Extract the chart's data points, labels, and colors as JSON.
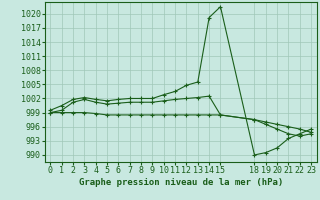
{
  "title": "Graphe pression niveau de la mer (hPa)",
  "background_color": "#c8e8e0",
  "grid_color": "#a0c8b8",
  "line_color": "#1a5e1a",
  "marker": "+",
  "line1_x": [
    0,
    1,
    2,
    3,
    4,
    5,
    6,
    7,
    8,
    9,
    10,
    11,
    12,
    13,
    14,
    15,
    18,
    19,
    20,
    21,
    22,
    23
  ],
  "line1_y": [
    999.5,
    1000.5,
    1001.8,
    1002.2,
    1001.8,
    1001.5,
    1001.8,
    1002.0,
    1002.0,
    1002.0,
    1002.8,
    1003.5,
    1004.8,
    1005.5,
    1019.2,
    1021.5,
    990.0,
    990.5,
    991.5,
    993.5,
    994.5,
    995.5
  ],
  "line2_x": [
    0,
    1,
    2,
    3,
    4,
    5,
    6,
    7,
    8,
    9,
    10,
    11,
    12,
    13,
    14,
    15,
    18,
    19,
    20,
    21,
    22,
    23
  ],
  "line2_y": [
    999.0,
    999.5,
    1001.2,
    1001.8,
    1001.2,
    1000.8,
    1001.0,
    1001.2,
    1001.2,
    1001.2,
    1001.5,
    1001.8,
    1002.0,
    1002.2,
    1002.5,
    998.5,
    997.5,
    996.5,
    995.5,
    994.5,
    994.0,
    994.5
  ],
  "line3_x": [
    0,
    1,
    2,
    3,
    4,
    5,
    6,
    7,
    8,
    9,
    10,
    11,
    12,
    13,
    14,
    15,
    18,
    19,
    20,
    21,
    22,
    23
  ],
  "line3_y": [
    999.0,
    999.0,
    999.0,
    999.0,
    998.8,
    998.5,
    998.5,
    998.5,
    998.5,
    998.5,
    998.5,
    998.5,
    998.5,
    998.5,
    998.5,
    998.5,
    997.5,
    997.0,
    996.5,
    996.0,
    995.5,
    994.8
  ],
  "xticks": [
    0,
    1,
    2,
    3,
    4,
    5,
    6,
    7,
    8,
    9,
    10,
    11,
    12,
    13,
    14,
    15,
    18,
    19,
    20,
    21,
    22,
    23
  ],
  "xlabels": [
    "0",
    "1",
    "2",
    "3",
    "4",
    "5",
    "6",
    "7",
    "8",
    "9",
    "10",
    "11",
    "12",
    "13",
    "14",
    "15",
    "18",
    "19",
    "20",
    "21",
    "22",
    "23"
  ],
  "ylim": [
    988.5,
    1022.5
  ],
  "yticks": [
    990,
    993,
    996,
    999,
    1002,
    1005,
    1008,
    1011,
    1014,
    1017,
    1020
  ],
  "xlim": [
    -0.5,
    23.5
  ],
  "tick_fontsize": 6,
  "title_fontsize": 6.5
}
